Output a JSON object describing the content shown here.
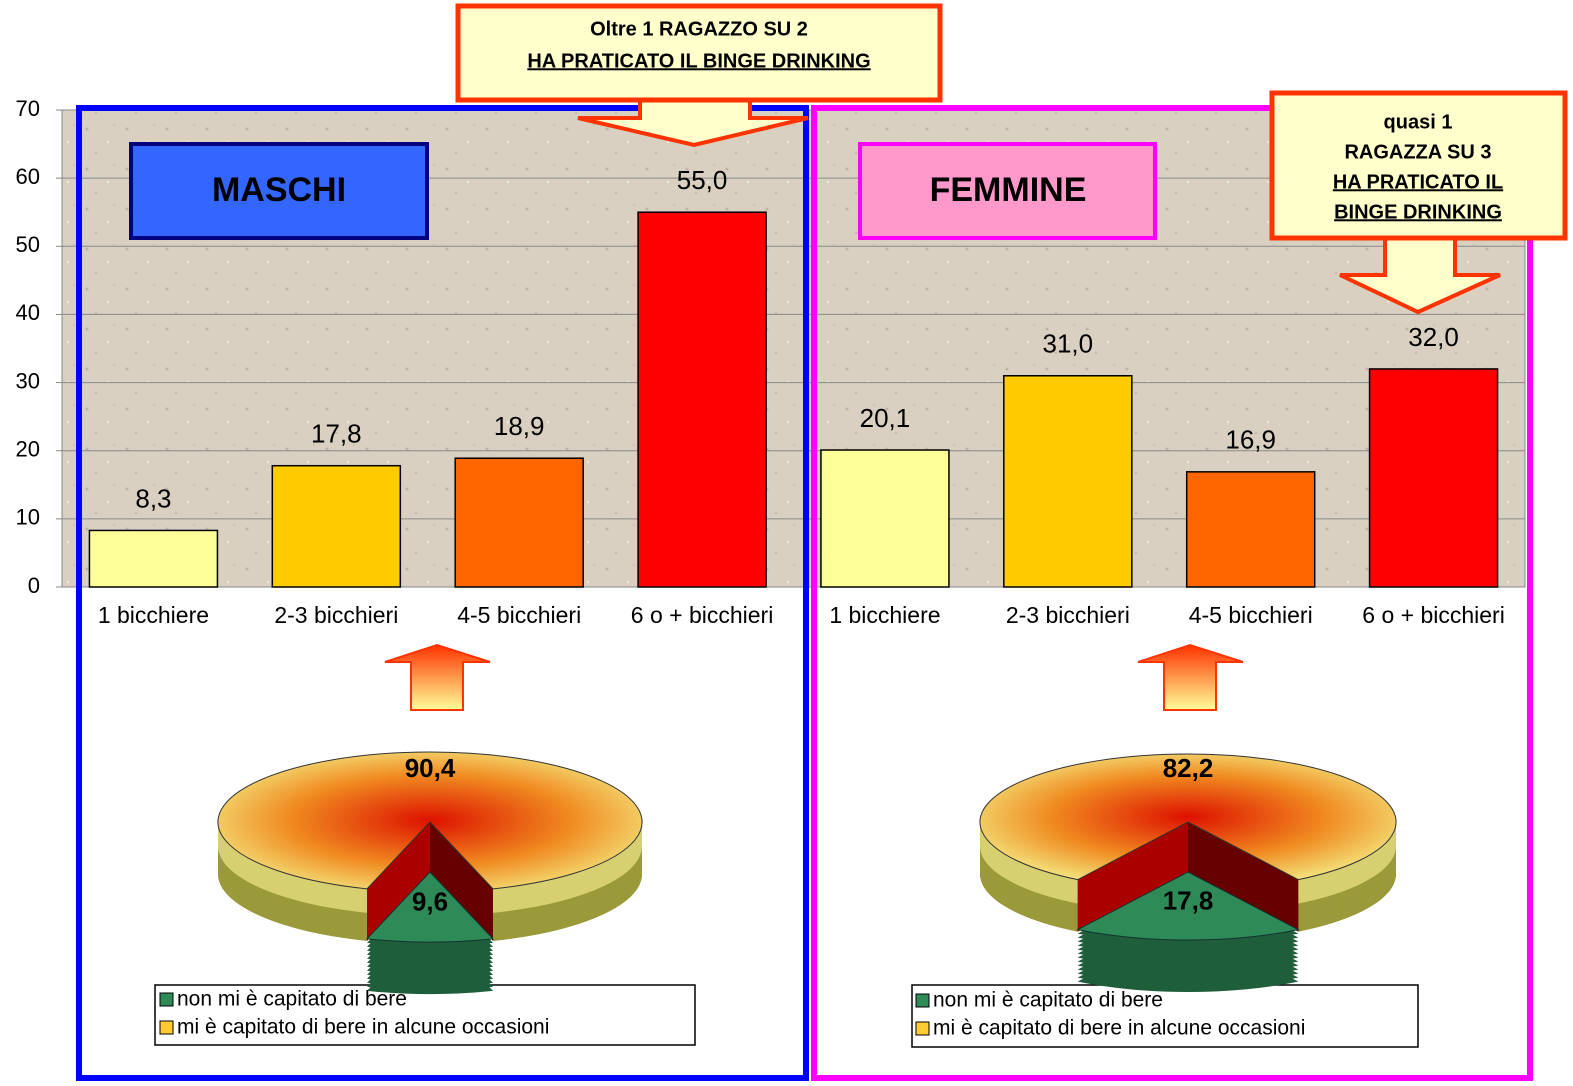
{
  "chart_data": [
    {
      "type": "bar",
      "categories": [
        "1 bicchiere",
        "2-3 bicchieri",
        "4-5 bicchieri",
        "6 o + bicchieri",
        "1 bicchiere",
        "2-3 bicchieri",
        "4-5 bicchieri",
        "6 o + bicchieri"
      ],
      "values": [
        8.3,
        17.8,
        18.9,
        55.0,
        20.1,
        31.0,
        16.9,
        32.0
      ],
      "value_labels": [
        "8,3",
        "17,8",
        "18,9",
        "55,0",
        "20,1",
        "31,0",
        "16,9",
        "32,0"
      ],
      "colors": [
        "#ffff99",
        "#ffcc00",
        "#ff6600",
        "#ff0000",
        "#ffff99",
        "#ffcc00",
        "#ff6600",
        "#ff0000"
      ],
      "ylim": [
        0,
        70
      ],
      "yticks": [
        0,
        10,
        20,
        30,
        40,
        50,
        60,
        70
      ],
      "grid": true,
      "annotations": [
        "MASCHI",
        "FEMMINE"
      ],
      "callouts": [
        [
          "Oltre 1 RAGAZZO SU 2",
          "HA PRATICATO IL BINGE DRINKING"
        ],
        [
          "quasi 1",
          "RAGAZZA SU 3",
          "HA PRATICATO IL",
          "BINGE DRINKING"
        ]
      ]
    },
    {
      "type": "pie",
      "categories": [
        "non mi è capitato di bere",
        "mi è capitato di bere in alcune occasioni"
      ],
      "values": [
        9.6,
        90.4
      ],
      "value_labels": [
        "9,6",
        "90,4"
      ],
      "colors": [
        "#2e8b57",
        "#ffcc33"
      ]
    },
    {
      "type": "pie",
      "categories": [
        "non mi è capitato di bere",
        "mi è capitato di bere in alcune occasioni"
      ],
      "values": [
        17.8,
        82.2
      ],
      "value_labels": [
        "17,8",
        "82,2"
      ],
      "colors": [
        "#2e8b57",
        "#ffcc33"
      ]
    }
  ]
}
